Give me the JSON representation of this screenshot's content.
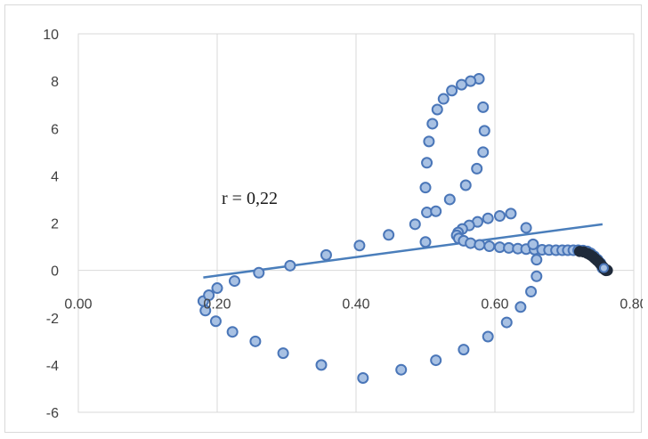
{
  "chart_data": {
    "type": "scatter",
    "title": "",
    "xlabel": "",
    "ylabel": "",
    "xlim": [
      0,
      0.8
    ],
    "ylim": [
      -6,
      10
    ],
    "x_ticks": [
      "0.00",
      "0.20",
      "0.40",
      "0.60",
      "0.80"
    ],
    "y_ticks": [
      "-6",
      "-4",
      "-2",
      "0",
      "2",
      "4",
      "6",
      "8",
      "10"
    ],
    "grid": "vertical",
    "legend": "none",
    "annotation": "r = 0,22",
    "colors": {
      "marker_fill": "#a8c1e3",
      "marker_edge": "#4a76b8",
      "trendline": "#4a7ebb",
      "grid": "#d9d9d9",
      "dense_tail": "#1f2a3a"
    },
    "trendline": {
      "x": [
        0.18,
        0.755
      ],
      "y": [
        -0.3,
        1.95
      ]
    },
    "points": [
      [
        0.577,
        8.1
      ],
      [
        0.565,
        8.0
      ],
      [
        0.552,
        7.85
      ],
      [
        0.538,
        7.6
      ],
      [
        0.526,
        7.25
      ],
      [
        0.517,
        6.8
      ],
      [
        0.51,
        6.2
      ],
      [
        0.505,
        5.45
      ],
      [
        0.502,
        4.55
      ],
      [
        0.5,
        3.5
      ],
      [
        0.502,
        2.45
      ],
      [
        0.515,
        2.5
      ],
      [
        0.535,
        3.0
      ],
      [
        0.558,
        3.6
      ],
      [
        0.574,
        4.3
      ],
      [
        0.583,
        5.0
      ],
      [
        0.585,
        5.9
      ],
      [
        0.583,
        6.9
      ],
      [
        0.623,
        2.4
      ],
      [
        0.607,
        2.3
      ],
      [
        0.59,
        2.2
      ],
      [
        0.575,
        2.05
      ],
      [
        0.563,
        1.9
      ],
      [
        0.553,
        1.75
      ],
      [
        0.547,
        1.6
      ],
      [
        0.545,
        1.48
      ],
      [
        0.548,
        1.35
      ],
      [
        0.555,
        1.25
      ],
      [
        0.565,
        1.15
      ],
      [
        0.578,
        1.08
      ],
      [
        0.592,
        1.02
      ],
      [
        0.607,
        0.98
      ],
      [
        0.62,
        0.95
      ],
      [
        0.633,
        0.92
      ],
      [
        0.645,
        0.9
      ],
      [
        0.657,
        0.88
      ],
      [
        0.668,
        0.87
      ],
      [
        0.678,
        0.86
      ],
      [
        0.688,
        0.85
      ],
      [
        0.697,
        0.85
      ],
      [
        0.705,
        0.85
      ],
      [
        0.713,
        0.85
      ],
      [
        0.72,
        0.85
      ],
      [
        0.727,
        0.84
      ],
      [
        0.733,
        0.8
      ],
      [
        0.738,
        0.72
      ],
      [
        0.743,
        0.6
      ],
      [
        0.748,
        0.45
      ],
      [
        0.752,
        0.3
      ],
      [
        0.755,
        0.1
      ],
      [
        0.645,
        1.8
      ],
      [
        0.655,
        1.1
      ],
      [
        0.66,
        0.45
      ],
      [
        0.66,
        -0.25
      ],
      [
        0.652,
        -0.9
      ],
      [
        0.637,
        -1.55
      ],
      [
        0.617,
        -2.2
      ],
      [
        0.59,
        -2.8
      ],
      [
        0.555,
        -3.35
      ],
      [
        0.515,
        -3.8
      ],
      [
        0.465,
        -4.2
      ],
      [
        0.41,
        -4.55
      ],
      [
        0.35,
        -4.0
      ],
      [
        0.295,
        -3.5
      ],
      [
        0.255,
        -3.0
      ],
      [
        0.222,
        -2.6
      ],
      [
        0.198,
        -2.15
      ],
      [
        0.183,
        -1.7
      ],
      [
        0.18,
        -1.3
      ],
      [
        0.188,
        -1.05
      ],
      [
        0.2,
        -0.75
      ],
      [
        0.225,
        -0.45
      ],
      [
        0.26,
        -0.1
      ],
      [
        0.305,
        0.2
      ],
      [
        0.357,
        0.65
      ],
      [
        0.405,
        1.05
      ],
      [
        0.447,
        1.5
      ],
      [
        0.485,
        1.95
      ],
      [
        0.5,
        1.2
      ]
    ],
    "dense_tail": [
      [
        0.722,
        0.8
      ],
      [
        0.728,
        0.78
      ],
      [
        0.733,
        0.72
      ],
      [
        0.737,
        0.66
      ],
      [
        0.741,
        0.58
      ],
      [
        0.744,
        0.5
      ],
      [
        0.747,
        0.42
      ],
      [
        0.75,
        0.34
      ],
      [
        0.752,
        0.27
      ],
      [
        0.754,
        0.2
      ],
      [
        0.756,
        0.14
      ],
      [
        0.757,
        0.08
      ],
      [
        0.758,
        0.04
      ],
      [
        0.759,
        0.01
      ],
      [
        0.76,
        -0.01
      ],
      [
        0.761,
        0.02
      ],
      [
        0.762,
        0.0
      ]
    ]
  }
}
